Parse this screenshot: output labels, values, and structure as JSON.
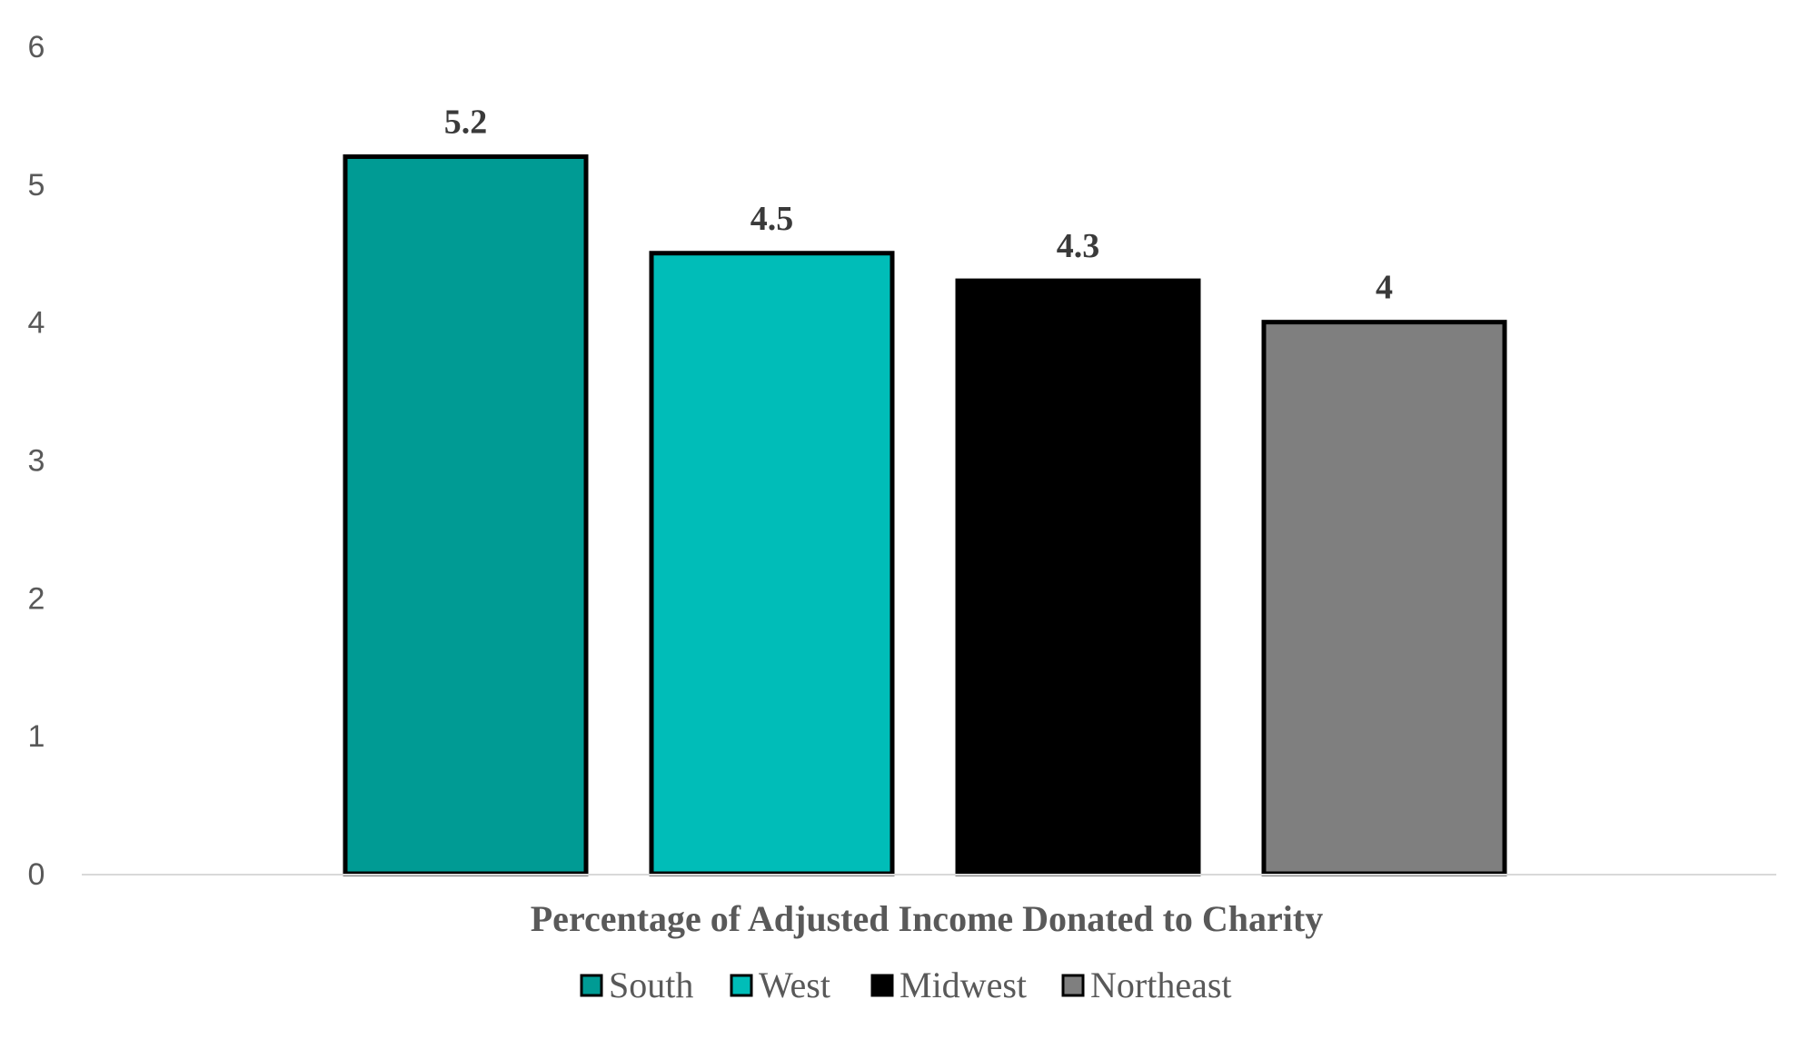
{
  "chart_data": {
    "type": "bar",
    "xlabel": "Percentage of Adjusted Income Donated to Charity",
    "ylabel": "",
    "ylim": [
      0,
      6
    ],
    "yticks": [
      0,
      1,
      2,
      3,
      4,
      5,
      6
    ],
    "categories": [
      "South",
      "West",
      "Midwest",
      "Northeast"
    ],
    "series": [
      {
        "name": "South",
        "value": 5.2,
        "label": "5.2",
        "color": "#009B94"
      },
      {
        "name": "West",
        "value": 4.5,
        "label": "4.5",
        "color": "#00BDB8"
      },
      {
        "name": "Midwest",
        "value": 4.3,
        "label": "4.3",
        "color": "#000000"
      },
      {
        "name": "Northeast",
        "value": 4.0,
        "label": "4",
        "color": "#7F7F7F"
      }
    ],
    "bar_outline_color": "#000000",
    "axis_color": "#D9D9D9",
    "grid": false,
    "legend_position": "bottom"
  }
}
